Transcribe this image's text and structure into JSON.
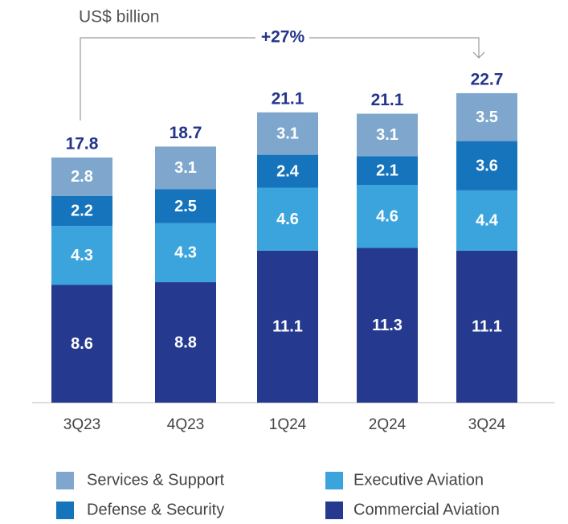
{
  "chart_data": {
    "type": "stacked_bar",
    "unit_label": "US$ billion",
    "annotation": "+27%",
    "categories": [
      "3Q23",
      "4Q23",
      "1Q24",
      "2Q24",
      "3Q24"
    ],
    "series": [
      {
        "name": "Commercial Aviation",
        "color": "#253a8f",
        "values": [
          8.6,
          8.8,
          11.1,
          11.3,
          11.1
        ]
      },
      {
        "name": "Executive Aviation",
        "color": "#3ba4dd",
        "values": [
          4.3,
          4.3,
          4.6,
          4.6,
          4.4
        ]
      },
      {
        "name": "Defense & Security",
        "color": "#1574bc",
        "values": [
          2.2,
          2.5,
          2.4,
          2.1,
          3.6
        ]
      },
      {
        "name": "Services & Support",
        "color": "#7fa7cd",
        "values": [
          2.8,
          3.1,
          3.1,
          3.1,
          3.5
        ]
      }
    ],
    "totals": [
      17.8,
      18.7,
      21.1,
      21.1,
      22.7
    ],
    "ylim": [
      0,
      26
    ]
  }
}
